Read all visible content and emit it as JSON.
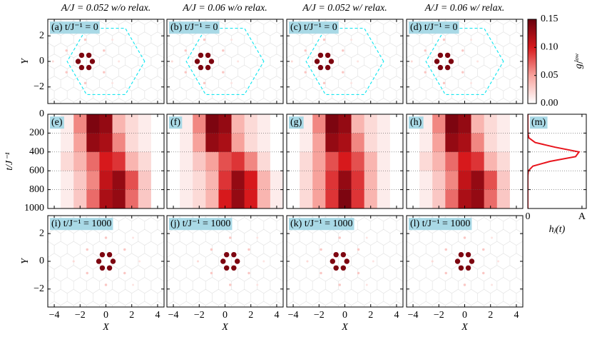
{
  "colorbar": {
    "label": "gⱼˡᵒʷ",
    "lim": [
      0,
      0.15
    ],
    "ticks": [
      {
        "value": 0,
        "label": "0.00"
      },
      {
        "value": 0.05,
        "label": "0.05"
      },
      {
        "value": 0.1,
        "label": "0.10"
      },
      {
        "value": 0.15,
        "label": "0.15"
      }
    ],
    "colormap": [
      "#ffffff",
      "#f7a29c",
      "#d7191c",
      "#67000d"
    ]
  },
  "chart_data": [
    {
      "type": "scatter",
      "title": "A/J = 0.052 w/o relax.",
      "label": "(a) t/J⁻¹ = 0",
      "ylabel": "Y",
      "xlim": [
        -4.5,
        4.5
      ],
      "ylim": [
        -3.3,
        3.3
      ],
      "yticks": [
        {
          "value": -2,
          "label": "−2"
        },
        0,
        2
      ],
      "x": [
        -1.05,
        -1.32,
        -1.88,
        -2.15,
        -1.88,
        -1.32,
        -0.15,
        -0.15,
        -3.05,
        -3.05,
        -1.6,
        -1.6,
        1.0,
        -4.1,
        0.5,
        0.5
      ],
      "y": [
        0,
        0.48,
        0.48,
        0,
        -0.48,
        -0.48,
        0.85,
        -0.85,
        0.85,
        -0.85,
        1.7,
        -1.7,
        0,
        0,
        1.7,
        -1.7
      ],
      "values": [
        0.14,
        0.14,
        0.14,
        0.14,
        0.14,
        0.14,
        0.03,
        0.03,
        0.03,
        0.03,
        0.03,
        0.03,
        0.015,
        0.02,
        0.015,
        0.015
      ]
    },
    {
      "type": "scatter",
      "title": "A/J = 0.06 w/o relax.",
      "label": "(b) t/J⁻¹ = 0",
      "xlim": [
        -4.5,
        4.5
      ],
      "ylim": [
        -3.3,
        3.3
      ],
      "x": [
        -1.05,
        -1.32,
        -1.88,
        -2.15,
        -1.88,
        -1.32,
        -0.15,
        -0.15,
        -3.05,
        -3.05,
        -1.6,
        -1.6,
        1.0,
        -4.1,
        0.5,
        0.5
      ],
      "y": [
        0,
        0.48,
        0.48,
        0,
        -0.48,
        -0.48,
        0.85,
        -0.85,
        0.85,
        -0.85,
        1.7,
        -1.7,
        0,
        0,
        1.7,
        -1.7
      ],
      "values": [
        0.14,
        0.14,
        0.14,
        0.14,
        0.14,
        0.14,
        0.03,
        0.03,
        0.03,
        0.03,
        0.03,
        0.03,
        0.015,
        0.02,
        0.015,
        0.015
      ]
    },
    {
      "type": "scatter",
      "title": "A/J = 0.052 w/ relax.",
      "label": "(c) t/J⁻¹ = 0",
      "xlim": [
        -4.5,
        4.5
      ],
      "ylim": [
        -3.3,
        3.3
      ],
      "x": [
        -1.05,
        -1.32,
        -1.88,
        -2.15,
        -1.88,
        -1.32,
        -0.15,
        -0.15,
        -3.05,
        -3.05,
        -1.6,
        -1.6,
        1.0,
        -4.1,
        0.5,
        0.5
      ],
      "y": [
        0,
        0.48,
        0.48,
        0,
        -0.48,
        -0.48,
        0.85,
        -0.85,
        0.85,
        -0.85,
        1.7,
        -1.7,
        0,
        0,
        1.7,
        -1.7
      ],
      "values": [
        0.14,
        0.14,
        0.14,
        0.14,
        0.14,
        0.14,
        0.03,
        0.03,
        0.03,
        0.03,
        0.03,
        0.03,
        0.015,
        0.02,
        0.015,
        0.015
      ]
    },
    {
      "type": "scatter",
      "title": "A/J = 0.06 w/ relax.",
      "label": "(d) t/J⁻¹ = 0",
      "xlim": [
        -4.5,
        4.5
      ],
      "ylim": [
        -3.3,
        3.3
      ],
      "x": [
        -1.05,
        -1.32,
        -1.88,
        -2.15,
        -1.88,
        -1.32,
        -0.15,
        -0.15,
        -3.05,
        -3.05,
        -1.6,
        -1.6,
        1.0,
        -4.1,
        0.5,
        0.5
      ],
      "y": [
        0,
        0.48,
        0.48,
        0,
        -0.48,
        -0.48,
        0.85,
        -0.85,
        0.85,
        -0.85,
        1.7,
        -1.7,
        0,
        0,
        1.7,
        -1.7
      ],
      "values": [
        0.14,
        0.14,
        0.14,
        0.14,
        0.14,
        0.14,
        0.03,
        0.03,
        0.03,
        0.03,
        0.03,
        0.03,
        0.015,
        0.02,
        0.015,
        0.015
      ]
    },
    {
      "type": "heatmap",
      "label": "(e)",
      "ylabel": "t/J⁻¹",
      "grid": true,
      "xlim": [
        -4.5,
        4.5
      ],
      "ylim": [
        1000,
        0
      ],
      "yticks": [
        0,
        200,
        400,
        600,
        800,
        1000
      ],
      "x_edges": [
        -4.5,
        -3.5,
        -2.5,
        -1.5,
        -0.5,
        0.5,
        1.5,
        2.5,
        3.5,
        4.5
      ],
      "t_edges": [
        0,
        200,
        400,
        600,
        800,
        1000
      ],
      "values": [
        [
          0,
          0.01,
          0.06,
          0.14,
          0.13,
          0.04,
          0.02,
          0.01,
          0
        ],
        [
          0,
          0.01,
          0.05,
          0.13,
          0.12,
          0.06,
          0.02,
          0.01,
          0
        ],
        [
          0,
          0.02,
          0.04,
          0.07,
          0.1,
          0.09,
          0.04,
          0.02,
          0
        ],
        [
          0,
          0.01,
          0.03,
          0.06,
          0.11,
          0.13,
          0.08,
          0.03,
          0
        ],
        [
          0,
          0.01,
          0.03,
          0.07,
          0.12,
          0.13,
          0.07,
          0.03,
          0
        ]
      ]
    },
    {
      "type": "heatmap",
      "label": "(f)",
      "grid": true,
      "xlim": [
        -4.5,
        4.5
      ],
      "ylim": [
        1000,
        0
      ],
      "x_edges": [
        -4.5,
        -3.5,
        -2.5,
        -1.5,
        -0.5,
        0.5,
        1.5,
        2.5,
        3.5,
        4.5
      ],
      "t_edges": [
        0,
        200,
        400,
        600,
        800,
        1000
      ],
      "values": [
        [
          0,
          0.01,
          0.06,
          0.14,
          0.13,
          0.04,
          0.02,
          0.01,
          0
        ],
        [
          0,
          0.01,
          0.05,
          0.13,
          0.12,
          0.05,
          0.02,
          0.01,
          0
        ],
        [
          0,
          0.01,
          0.03,
          0.05,
          0.08,
          0.09,
          0.06,
          0.02,
          0
        ],
        [
          0,
          0.01,
          0.02,
          0.04,
          0.09,
          0.13,
          0.1,
          0.04,
          0.01
        ],
        [
          0,
          0.01,
          0.02,
          0.04,
          0.1,
          0.13,
          0.1,
          0.04,
          0.01
        ]
      ]
    },
    {
      "type": "heatmap",
      "label": "(g)",
      "grid": true,
      "xlim": [
        -4.5,
        4.5
      ],
      "ylim": [
        1000,
        0
      ],
      "x_edges": [
        -4.5,
        -3.5,
        -2.5,
        -1.5,
        -0.5,
        0.5,
        1.5,
        2.5,
        3.5,
        4.5
      ],
      "t_edges": [
        0,
        200,
        400,
        600,
        800,
        1000
      ],
      "values": [
        [
          0,
          0.01,
          0.06,
          0.14,
          0.13,
          0.04,
          0.02,
          0.01,
          0
        ],
        [
          0,
          0.01,
          0.05,
          0.13,
          0.12,
          0.06,
          0.02,
          0.01,
          0
        ],
        [
          0,
          0.02,
          0.05,
          0.08,
          0.1,
          0.08,
          0.04,
          0.01,
          0
        ],
        [
          0,
          0.02,
          0.05,
          0.09,
          0.13,
          0.09,
          0.04,
          0.01,
          0
        ],
        [
          0,
          0.02,
          0.05,
          0.09,
          0.14,
          0.09,
          0.04,
          0.01,
          0
        ]
      ]
    },
    {
      "type": "heatmap",
      "label": "(h)",
      "grid": true,
      "xlim": [
        -4.5,
        4.5
      ],
      "ylim": [
        1000,
        0
      ],
      "x_edges": [
        -4.5,
        -3.5,
        -2.5,
        -1.5,
        -0.5,
        0.5,
        1.5,
        2.5,
        3.5,
        4.5
      ],
      "t_edges": [
        0,
        200,
        400,
        600,
        800,
        1000
      ],
      "values": [
        [
          0,
          0.01,
          0.06,
          0.14,
          0.13,
          0.04,
          0.02,
          0.01,
          0
        ],
        [
          0,
          0.01,
          0.05,
          0.13,
          0.12,
          0.06,
          0.02,
          0.01,
          0
        ],
        [
          0,
          0.02,
          0.04,
          0.07,
          0.1,
          0.09,
          0.04,
          0.02,
          0
        ],
        [
          0,
          0.01,
          0.03,
          0.06,
          0.11,
          0.13,
          0.08,
          0.03,
          0
        ],
        [
          0,
          0.01,
          0.03,
          0.07,
          0.12,
          0.13,
          0.07,
          0.03,
          0
        ]
      ]
    },
    {
      "type": "scatter",
      "label": "(i) t/J⁻¹ = 1000",
      "ylabel": "Y",
      "xlabel": "X",
      "xlim": [
        -4.5,
        4.5
      ],
      "ylim": [
        -3.3,
        3.3
      ],
      "yticks": [
        {
          "value": -2,
          "label": "−2"
        },
        0,
        2
      ],
      "xticks": [
        {
          "value": -4,
          "label": "−4"
        },
        {
          "value": -2,
          "label": "−2"
        },
        0,
        2,
        4
      ],
      "x": [
        0.55,
        0.28,
        -0.28,
        -0.55,
        -0.28,
        0.28,
        1.45,
        1.45,
        -1.45,
        -1.45,
        0,
        0,
        2.6,
        -2.5,
        2.1,
        2.1
      ],
      "y": [
        0,
        0.48,
        0.48,
        0,
        -0.48,
        -0.48,
        0.85,
        -0.85,
        0.85,
        -0.85,
        1.7,
        -1.7,
        0,
        0,
        1.7,
        -1.7
      ],
      "values": [
        0.14,
        0.14,
        0.14,
        0.14,
        0.14,
        0.14,
        0.03,
        0.03,
        0.03,
        0.03,
        0.03,
        0.03,
        0.015,
        0.02,
        0.015,
        0.015
      ]
    },
    {
      "type": "scatter",
      "label": "(j) t/J⁻¹ = 1000",
      "xlabel": "X",
      "xlim": [
        -4.5,
        4.5
      ],
      "ylim": [
        -3.3,
        3.3
      ],
      "xticks": [
        {
          "value": -4,
          "label": "−4"
        },
        {
          "value": -2,
          "label": "−2"
        },
        0,
        2,
        4
      ],
      "x": [
        0.95,
        0.68,
        0.12,
        -0.15,
        0.12,
        0.68,
        1.85,
        1.85,
        -1.05,
        -1.05,
        0.4,
        0.4,
        3.0,
        -2.1,
        2.5,
        2.5
      ],
      "y": [
        0,
        0.48,
        0.48,
        0,
        -0.48,
        -0.48,
        0.85,
        -0.85,
        0.85,
        -0.85,
        1.7,
        -1.7,
        0,
        0,
        1.7,
        -1.7
      ],
      "values": [
        0.14,
        0.14,
        0.14,
        0.14,
        0.14,
        0.14,
        0.03,
        0.03,
        0.03,
        0.03,
        0.03,
        0.03,
        0.015,
        0.02,
        0.015,
        0.015
      ]
    },
    {
      "type": "scatter",
      "label": "(k) t/J⁻¹ = 1000",
      "xlabel": "X",
      "xlim": [
        -4.5,
        4.5
      ],
      "ylim": [
        -3.3,
        3.3
      ],
      "xticks": [
        {
          "value": -4,
          "label": "−4"
        },
        {
          "value": -2,
          "label": "−2"
        },
        0,
        2,
        4
      ],
      "x": [
        0.15,
        -0.12,
        -0.68,
        -0.95,
        -0.68,
        -0.12,
        1.05,
        1.05,
        -1.85,
        -1.85,
        -0.4,
        -0.4,
        2.2,
        -2.9,
        1.7,
        1.7
      ],
      "y": [
        0,
        0.48,
        0.48,
        0,
        -0.48,
        -0.48,
        0.85,
        -0.85,
        0.85,
        -0.85,
        1.7,
        -1.7,
        0,
        0,
        1.7,
        -1.7
      ],
      "values": [
        0.14,
        0.14,
        0.14,
        0.14,
        0.14,
        0.14,
        0.03,
        0.03,
        0.03,
        0.03,
        0.03,
        0.03,
        0.015,
        0.02,
        0.015,
        0.015
      ]
    },
    {
      "type": "scatter",
      "label": "(l) t/J⁻¹ = 1000",
      "xlabel": "X",
      "xlim": [
        -4.5,
        4.5
      ],
      "ylim": [
        -3.3,
        3.3
      ],
      "xticks": [
        {
          "value": -4,
          "label": "−4"
        },
        {
          "value": -2,
          "label": "−2"
        },
        0,
        2,
        4
      ],
      "x": [
        0.55,
        0.28,
        -0.28,
        -0.55,
        -0.28,
        0.28,
        1.45,
        1.45,
        -1.45,
        -1.45,
        0,
        0,
        2.6,
        -2.5,
        2.1,
        2.1
      ],
      "y": [
        0,
        0.48,
        0.48,
        0,
        -0.48,
        -0.48,
        0.85,
        -0.85,
        0.85,
        -0.85,
        1.7,
        -1.7,
        0,
        0,
        1.7,
        -1.7
      ],
      "values": [
        0.14,
        0.14,
        0.14,
        0.14,
        0.14,
        0.14,
        0.03,
        0.03,
        0.03,
        0.03,
        0.03,
        0.03,
        0.015,
        0.02,
        0.015,
        0.015
      ]
    },
    {
      "type": "line",
      "label": "(m)",
      "xlabel": "hⱼ(t)",
      "color": "#e8141c",
      "xlim": [
        0,
        1.08
      ],
      "ylim": [
        1000,
        0
      ],
      "xticks": [
        0,
        {
          "value": 1,
          "label": "A"
        }
      ],
      "t": [
        0,
        100,
        200,
        250,
        300,
        350,
        400,
        450,
        500,
        550,
        600,
        650,
        700,
        800,
        900,
        1000
      ],
      "values": [
        0,
        0,
        0.001,
        0.018,
        0.135,
        0.506,
        0.946,
        0.882,
        0.411,
        0.095,
        0.011,
        0.001,
        0,
        0,
        0,
        0
      ]
    }
  ]
}
